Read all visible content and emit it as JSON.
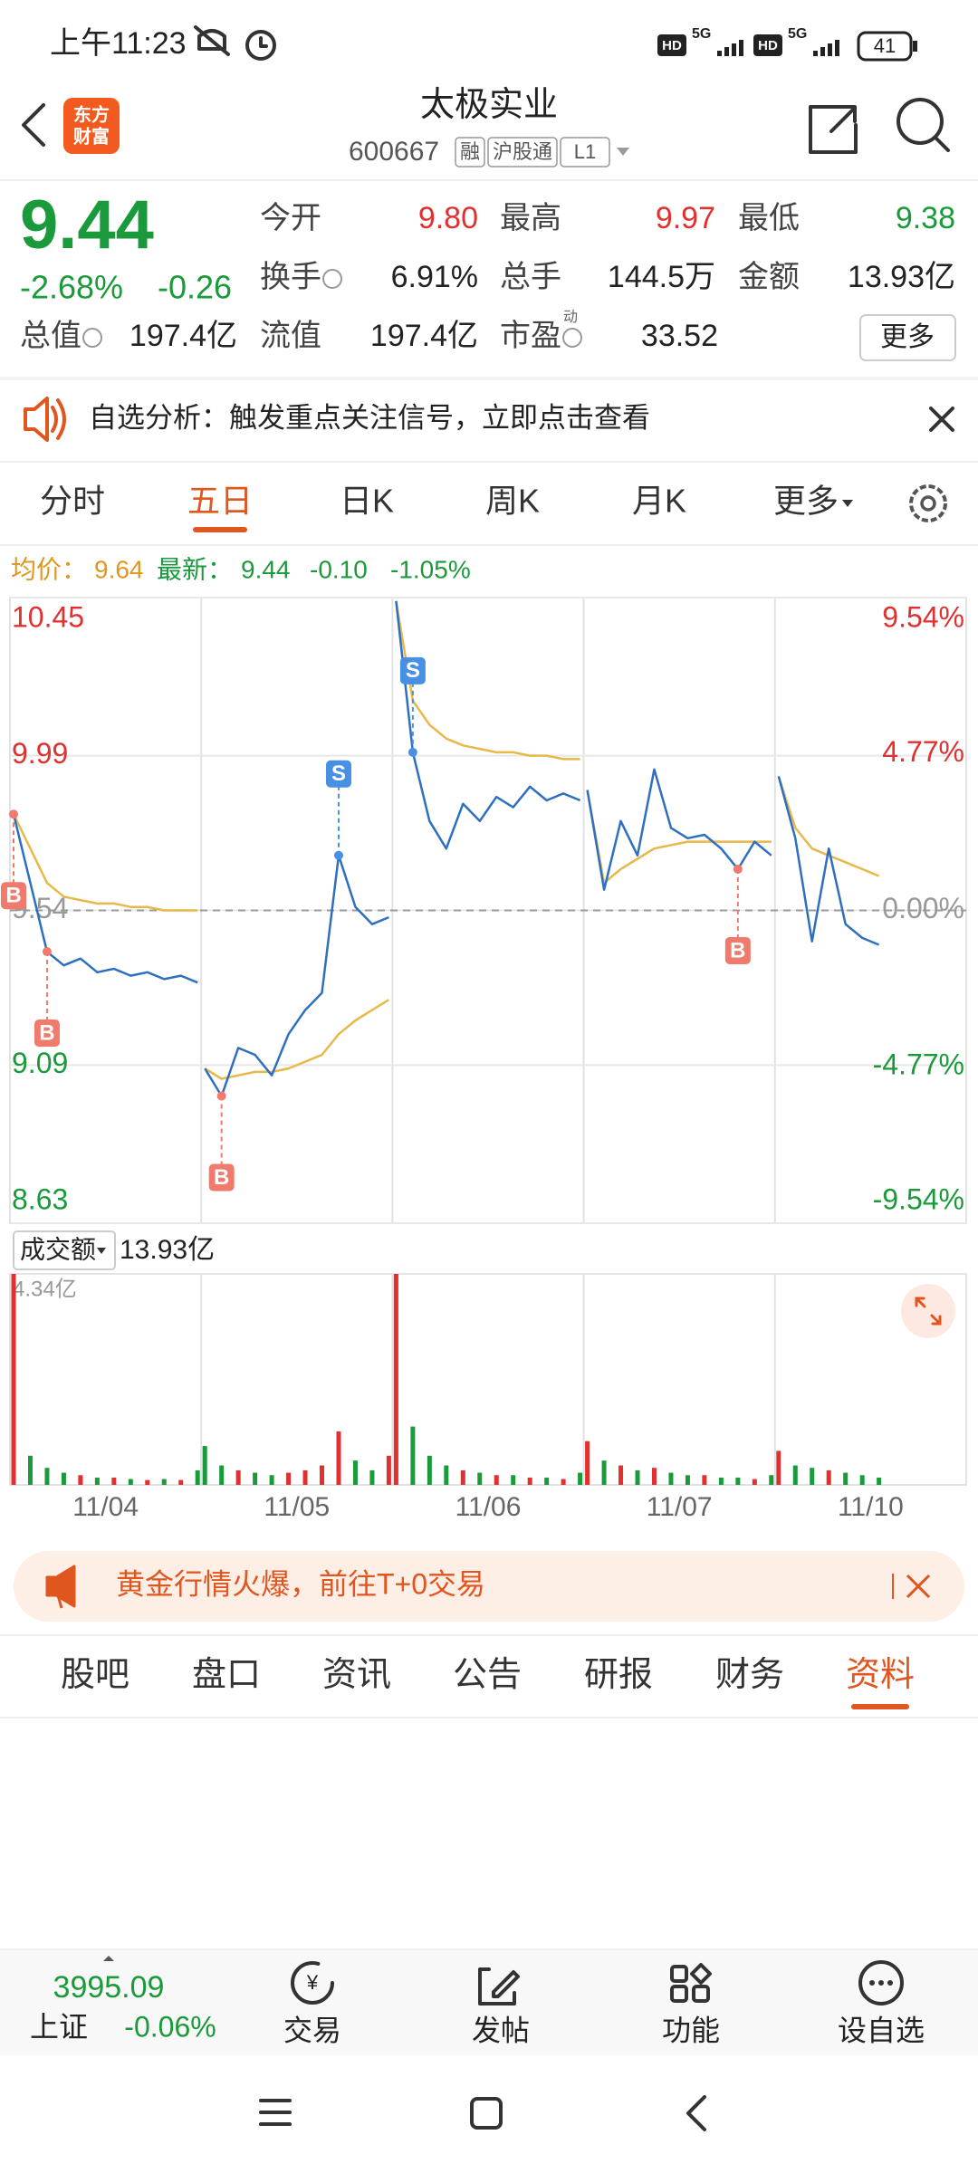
{
  "status_bar": {
    "time": "上午11:23",
    "network": [
      "HD",
      "5G",
      "HD",
      "5G"
    ],
    "battery": "41"
  },
  "header": {
    "logo": [
      "东方",
      "财富"
    ],
    "title": "太极实业",
    "code": "600667",
    "tags": [
      "融",
      "沪股通",
      "L1"
    ]
  },
  "quote": {
    "price": "9.44",
    "change_pct": "-2.68%",
    "change": "-0.26",
    "fields": [
      [
        {
          "label": "今开",
          "value": "9.80",
          "tone": "up"
        },
        {
          "label": "最高",
          "value": "9.97",
          "tone": "up"
        },
        {
          "label": "最低",
          "value": "9.38",
          "tone": "down"
        }
      ],
      [
        {
          "label": "换手",
          "value": "6.91%",
          "info": true
        },
        {
          "label": "总手",
          "value": "144.5万"
        },
        {
          "label": "金额",
          "value": "13.93亿"
        }
      ],
      [
        {
          "label": "总值",
          "value": "197.4亿",
          "info": true
        },
        {
          "label": "流值",
          "value": "197.4亿"
        },
        {
          "label": "市盈",
          "value": "33.52",
          "info": true,
          "sup": "动"
        }
      ]
    ],
    "more": "更多"
  },
  "notice": "自选分析：触发重点关注信号，立即点击查看",
  "tabs": {
    "items": [
      "分时",
      "五日",
      "日K",
      "周K",
      "月K",
      "更多"
    ],
    "active": 1
  },
  "info": {
    "avg_label": "均价：",
    "avg": "9.64",
    "latest_label": "最新：",
    "latest": "9.44",
    "change": "-0.10",
    "change_pct": "-1.05%"
  },
  "chart_data": {
    "type": "intraday",
    "categories": [
      "11/04",
      "11/05",
      "11/06",
      "11/07",
      "11/10"
    ],
    "price": [
      [
        9.82,
        9.62,
        9.42,
        9.38,
        9.4,
        9.36,
        9.37,
        9.35,
        9.36,
        9.34,
        9.35,
        9.33
      ],
      [
        9.08,
        9.0,
        9.14,
        9.12,
        9.06,
        9.18,
        9.25,
        9.3,
        9.7,
        9.55,
        9.5,
        9.52
      ],
      [
        10.44,
        10.0,
        9.8,
        9.72,
        9.85,
        9.8,
        9.87,
        9.84,
        9.9,
        9.86,
        9.88,
        9.86
      ],
      [
        9.89,
        9.6,
        9.8,
        9.7,
        9.95,
        9.78,
        9.75,
        9.76,
        9.72,
        9.66,
        9.74,
        9.7
      ],
      [
        9.93,
        9.75,
        9.45,
        9.72,
        9.5,
        9.46,
        9.44,
        null,
        null,
        null,
        null,
        null
      ]
    ],
    "avg": [
      [
        9.82,
        9.72,
        9.62,
        9.58,
        9.57,
        9.56,
        9.56,
        9.55,
        9.55,
        9.54,
        9.54,
        9.54
      ],
      [
        9.08,
        9.05,
        9.06,
        9.07,
        9.07,
        9.08,
        9.1,
        9.12,
        9.18,
        9.22,
        9.25,
        9.28
      ],
      [
        10.44,
        10.15,
        10.08,
        10.04,
        10.02,
        10.01,
        10.0,
        10.0,
        9.99,
        9.99,
        9.98,
        9.98
      ],
      [
        9.89,
        9.62,
        9.66,
        9.69,
        9.72,
        9.73,
        9.74,
        9.74,
        9.74,
        9.74,
        9.74,
        9.74
      ],
      [
        9.93,
        9.78,
        9.72,
        9.7,
        9.68,
        9.66,
        9.64,
        null,
        null,
        null,
        null,
        null
      ]
    ],
    "colors": {
      "price": "#2f6fc0",
      "avg": "#e8b84a",
      "up": "#e03030",
      "down": "#1a9a3a",
      "flat": "#999999"
    },
    "ylim": [
      8.63,
      10.45
    ],
    "yticks": [
      10.45,
      9.99,
      9.54,
      9.09,
      8.63
    ],
    "y2lim": [
      -9.54,
      9.54
    ],
    "y2ticks": [
      {
        "value": 9.54,
        "label": "9.54%"
      },
      {
        "value": 4.77,
        "label": "4.77%"
      },
      {
        "value": 0,
        "label": "0.00%"
      },
      {
        "value": -4.77,
        "label": "-4.77%"
      },
      {
        "value": -9.54,
        "label": "-9.54%"
      }
    ],
    "signals": [
      {
        "label": "B",
        "day": 0,
        "index": 0
      },
      {
        "label": "B",
        "day": 0,
        "index": 2
      },
      {
        "label": "B",
        "day": 1,
        "index": 1
      },
      {
        "label": "S",
        "day": 1,
        "index": 8
      },
      {
        "label": "S",
        "day": 2,
        "index": 1
      },
      {
        "label": "B",
        "day": 3,
        "index": 9
      }
    ],
    "volume": {
      "title": "成交额",
      "total": "13.93亿",
      "values": [
        [
          4.34,
          0.6,
          0.35,
          0.25,
          0.2,
          0.15,
          0.15,
          0.12,
          0.1,
          0.12,
          0.1,
          0.3
        ],
        [
          0.8,
          0.4,
          0.3,
          0.25,
          0.2,
          0.25,
          0.3,
          0.4,
          1.1,
          0.5,
          0.3,
          0.6
        ],
        [
          4.34,
          1.2,
          0.6,
          0.4,
          0.3,
          0.25,
          0.2,
          0.2,
          0.15,
          0.15,
          0.12,
          0.25
        ],
        [
          0.9,
          0.5,
          0.4,
          0.3,
          0.35,
          0.25,
          0.2,
          0.2,
          0.15,
          0.15,
          0.12,
          0.2
        ],
        [
          0.7,
          0.4,
          0.35,
          0.3,
          0.25,
          0.2,
          0.15,
          null,
          null,
          null,
          null,
          null
        ]
      ],
      "ylim": [
        0,
        4.34
      ],
      "yticks": [
        {
          "value": 4.34,
          "label": "4.34亿"
        }
      ]
    }
  },
  "banner": "黄金行情火爆，前往T+0交易",
  "bottom_tabs": {
    "items": [
      "股吧",
      "盘口",
      "资讯",
      "公告",
      "研报",
      "财务",
      "资料"
    ],
    "active": 6
  },
  "index_bar": {
    "value": "3995.09",
    "name": "上证",
    "change": "-0.06%"
  },
  "toolbar": [
    "交易",
    "发帖",
    "功能",
    "设自选"
  ]
}
